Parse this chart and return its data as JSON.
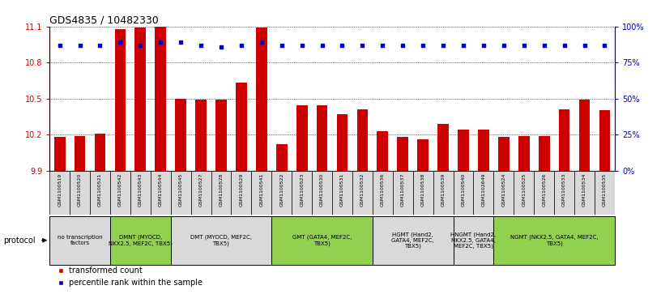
{
  "title": "GDS4835 / 10482330",
  "samples": [
    "GSM1100519",
    "GSM1100520",
    "GSM1100521",
    "GSM1100542",
    "GSM1100543",
    "GSM1100544",
    "GSM1100545",
    "GSM1100527",
    "GSM1100528",
    "GSM1100529",
    "GSM1100541",
    "GSM1100522",
    "GSM1100523",
    "GSM1100530",
    "GSM1100531",
    "GSM1100532",
    "GSM1100536",
    "GSM1100537",
    "GSM1100538",
    "GSM1100539",
    "GSM1100540",
    "GSM1102649",
    "GSM1100524",
    "GSM1100525",
    "GSM1100526",
    "GSM1100533",
    "GSM1100534",
    "GSM1100535"
  ],
  "bar_values": [
    10.18,
    10.19,
    10.21,
    11.08,
    11.09,
    11.1,
    10.5,
    10.49,
    10.49,
    10.63,
    11.09,
    10.12,
    10.44,
    10.44,
    10.37,
    10.41,
    10.23,
    10.18,
    10.16,
    10.29,
    10.24,
    10.24,
    10.18,
    10.19,
    10.19,
    10.41,
    10.49,
    10.4
  ],
  "percentile_values": [
    87,
    87,
    87,
    89,
    87,
    89,
    89,
    87,
    86,
    87,
    89,
    87,
    87,
    87,
    87,
    87,
    87,
    87,
    87,
    87,
    87,
    87,
    87,
    87,
    87,
    87,
    87,
    87
  ],
  "protocols": [
    {
      "label": "no transcription\nfactors",
      "start": 0,
      "end": 3,
      "color": "#d9d9d9"
    },
    {
      "label": "DMNT (MYOCD,\nNKX2.5, MEF2C, TBX5)",
      "start": 3,
      "end": 6,
      "color": "#92d050"
    },
    {
      "label": "DMT (MYOCD, MEF2C,\nTBX5)",
      "start": 6,
      "end": 11,
      "color": "#d9d9d9"
    },
    {
      "label": "GMT (GATA4, MEF2C,\nTBX5)",
      "start": 11,
      "end": 16,
      "color": "#92d050"
    },
    {
      "label": "HGMT (Hand2,\nGATA4, MEF2C,\nTBX5)",
      "start": 16,
      "end": 20,
      "color": "#d9d9d9"
    },
    {
      "label": "HNGMT (Hand2,\nNKX2.5, GATA4,\nMEF2C, TBX5)",
      "start": 20,
      "end": 22,
      "color": "#d9d9d9"
    },
    {
      "label": "NGMT (NKX2.5, GATA4, MEF2C,\nTBX5)",
      "start": 22,
      "end": 28,
      "color": "#92d050"
    }
  ],
  "ylim_left": [
    9.9,
    11.1
  ],
  "ylim_right": [
    0,
    100
  ],
  "yticks_left": [
    9.9,
    10.2,
    10.5,
    10.8,
    11.1
  ],
  "yticks_right": [
    0,
    25,
    50,
    75,
    100
  ],
  "bar_color": "#cc0000",
  "dot_color": "#0000cc",
  "bg_color": "#ffffff",
  "tick_color_left": "#cc0000",
  "tick_color_right": "#0000cc"
}
